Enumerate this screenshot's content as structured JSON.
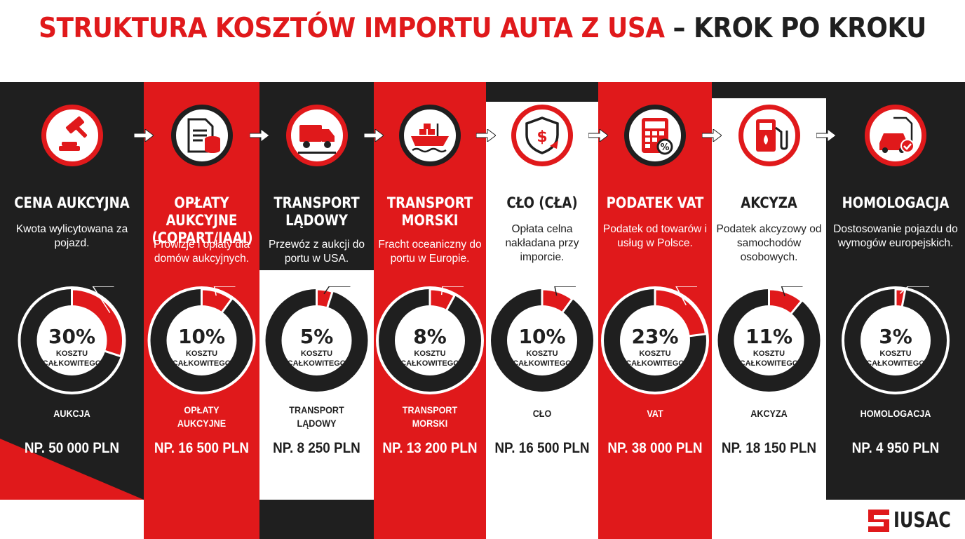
{
  "title": {
    "part1": "STRUKTURA KOSZTÓW IMPORTU AUTA Z USA",
    "part2": "– KROK PO KROKU"
  },
  "logo": {
    "text": "IUSAC"
  },
  "colors": {
    "red": "#e0191b",
    "dark": "#1f1f1f",
    "white": "#ffffff"
  },
  "chart_data": {
    "type": "pie",
    "center_label": "KOSZTU CAŁKOWITEGO",
    "steps": [
      {
        "title": "CENA AUKCYJNA",
        "desc": "Kwota wylicytowana za pojazd.",
        "icon": "gavel-icon",
        "label": "30%",
        "value": 30,
        "category": "AUKCJA",
        "price": "NP. 50 000 PLN"
      },
      {
        "title": "OPŁATY AUKCYJNE (COPART/IAAI)",
        "desc": "Prowizje i opłaty dla domów aukcyjnych.",
        "icon": "document-coins-icon",
        "label": "10%",
        "value": 10,
        "category": "OPŁATY AUKCYJNE",
        "price": "NP. 16 500 PLN"
      },
      {
        "title": "TRANSPORT LĄDOWY",
        "desc": "Przewóz z aukcji do portu w USA.",
        "icon": "truck-icon",
        "label": "5%",
        "value": 5,
        "category": "TRANSPORT LĄDOWY",
        "price": "NP. 8 250 PLN"
      },
      {
        "title": "TRANSPORT MORSKI",
        "desc": "Fracht oceaniczny do portu w Europie.",
        "icon": "cargo-ship-icon",
        "label": "8%",
        "value": 8,
        "category": "TRANSPORT MORSKI",
        "price": "NP. 13 200 PLN"
      },
      {
        "title": "CŁO (CŁA)",
        "desc": "Opłata celna nakładana przy imporcie.",
        "icon": "shield-dollar-icon",
        "label": "10%",
        "value": 10,
        "category": "CŁO",
        "price": "NP. 16 500 PLN"
      },
      {
        "title": "PODATEK VAT",
        "desc": "Podatek od towarów i usług w Polsce.",
        "icon": "calculator-icon",
        "label": "23%",
        "value": 23,
        "category": "VAT",
        "price": "NP. 38 000 PLN"
      },
      {
        "title": "AKCYZA",
        "desc": "Podatek akcyzowy od samochodów osobowych.",
        "icon": "fuel-pump-icon",
        "label": "11%",
        "value": 11,
        "category": "AKCYZA",
        "price": "NP. 18 150 PLN"
      },
      {
        "title": "HOMOLOGACJA",
        "desc": "Dostosowanie pojazdu do wymogów europejskich.",
        "icon": "car-certificate-icon",
        "label": "3%",
        "value": 3,
        "category": "HOMOLOGACJA",
        "price": "NP. 4 950 PLN"
      }
    ]
  }
}
